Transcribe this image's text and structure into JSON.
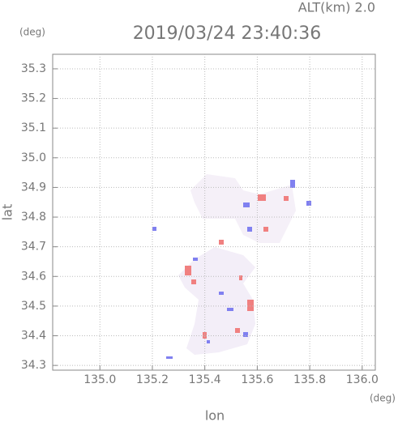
{
  "chart_data": {
    "type": "radar",
    "title": "2019/03/24 23:40:36",
    "altitude_label": "ALT(km) 2.0",
    "y_unit": "(deg)",
    "x_unit": "(deg)",
    "xlabel": "lon",
    "ylabel": "lat",
    "xlim": [
      134.82,
      136.05
    ],
    "ylim": [
      34.284,
      35.349
    ],
    "xticks": [
      {
        "value": 135,
        "label": "135.0"
      },
      135.2,
      135.4,
      135.6,
      135.8,
      {
        "value": 136,
        "label": "136.0"
      }
    ],
    "yticks": [
      34.3,
      34.4,
      34.5,
      34.6,
      34.7,
      34.8,
      34.9,
      {
        "value": 35,
        "label": "35.0"
      },
      35.1,
      35.2,
      35.3
    ],
    "grid": true
  }
}
